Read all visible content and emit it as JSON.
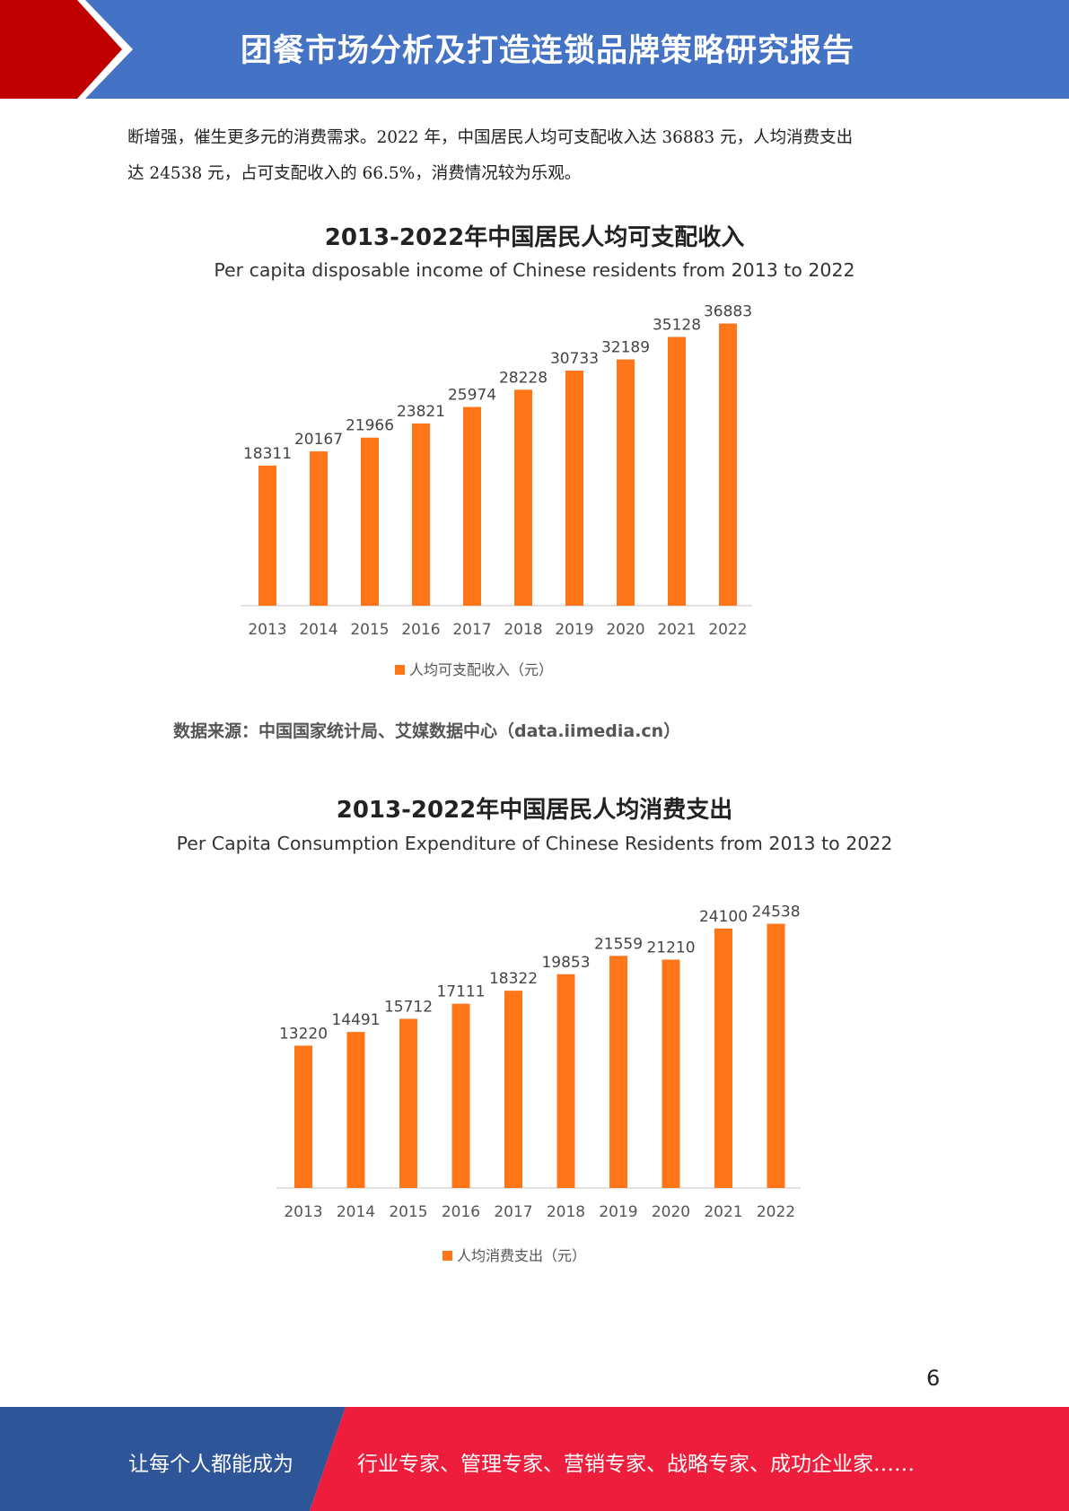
{
  "header": {
    "title": "团餐市场分析及打造连锁品牌策略研究报告",
    "colors": {
      "band": "#4472c4",
      "arrow": "#c00000"
    }
  },
  "body": {
    "line1": "断增强，催生更多元的消费需求。2022 年，中国居民人均可支配收入达 36883 元，人均消费支出",
    "line2": "达 24538 元，占可支配收入的 66.5%，消费情况较为乐观。"
  },
  "charts": {
    "income": {
      "title": "2013-2022年中国居民人均可支配收入",
      "subtitle": "Per capita disposable income of Chinese residents from 2013 to 2022",
      "source": "数据来源：中国国家统计局、艾媒数据中心（data.iimedia.cn）"
    },
    "expenditure": {
      "title": "2013-2022年中国居民人均消费支出",
      "subtitle": "Per Capita Consumption Expenditure of Chinese Residents from 2013 to 2022"
    }
  },
  "chart_data": [
    {
      "type": "bar",
      "title": "2013-2022年中国居民人均可支配收入",
      "subtitle": "Per capita disposable income of Chinese residents from 2013 to 2022",
      "categories": [
        "2013",
        "2014",
        "2015",
        "2016",
        "2017",
        "2018",
        "2019",
        "2020",
        "2021",
        "2022"
      ],
      "series": [
        {
          "name": "人均可支配收入（元）",
          "values": [
            18311,
            20167,
            21966,
            23821,
            25974,
            28228,
            30733,
            32189,
            35128,
            36883
          ]
        }
      ],
      "legend": "bottom-center",
      "color": "#ff7518",
      "ylim": [
        0,
        40000
      ],
      "grid": false
    },
    {
      "type": "bar",
      "title": "2013-2022年中国居民人均消费支出",
      "subtitle": "Per Capita Consumption Expenditure of Chinese Residents from 2013 to 2022",
      "categories": [
        "2013",
        "2014",
        "2015",
        "2016",
        "2017",
        "2018",
        "2019",
        "2020",
        "2021",
        "2022"
      ],
      "series": [
        {
          "name": "人均消费支出（元）",
          "values": [
            13220,
            14491,
            15712,
            17111,
            18322,
            19853,
            21559,
            21210,
            24100,
            24538
          ]
        }
      ],
      "legend": "bottom-center",
      "color": "#ff7518",
      "ylim": [
        0,
        26500
      ],
      "grid": false
    }
  ],
  "page_number": "6",
  "footer": {
    "left": "让每个人都能成为",
    "right": "行业专家、管理专家、营销专家、战略专家、成功企业家……",
    "colors": {
      "left": "#2e5597",
      "right": "#ee1d3b"
    }
  }
}
